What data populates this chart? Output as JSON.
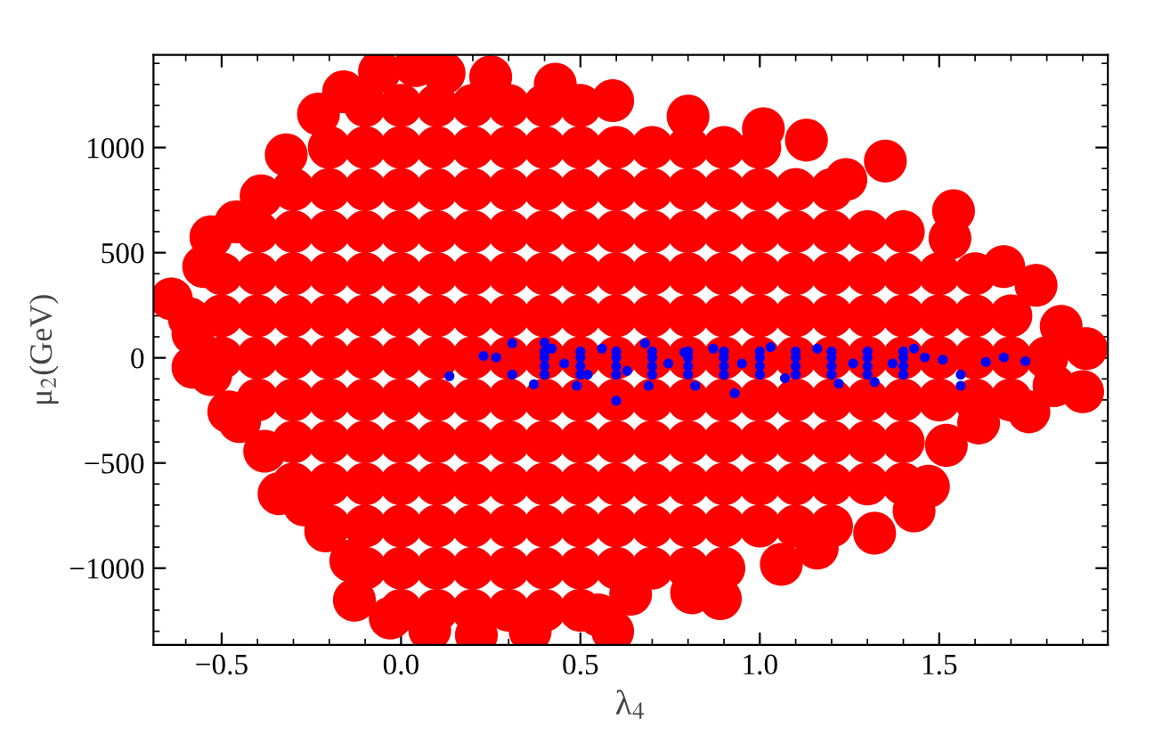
{
  "chart_data": {
    "type": "scatter",
    "xlabel": "λ$_{4}$",
    "ylabel": "μ$_{2}$(GeV)",
    "xlim": [
      -0.69,
      1.97
    ],
    "ylim": [
      -1365,
      1440
    ],
    "xticks": [
      {
        "value": -0.5,
        "label": "−0.5"
      },
      {
        "value": 0,
        "label": "0.0"
      },
      {
        "value": 0.5,
        "label": "0.5"
      },
      {
        "value": 1,
        "label": "1.0"
      },
      {
        "value": 1.5,
        "label": "1.5"
      }
    ],
    "yticks": [
      {
        "value": -1000,
        "label": "−1000"
      },
      {
        "value": -500,
        "label": "−500"
      },
      0,
      500,
      1000
    ],
    "grid": false,
    "marker": "circle",
    "series": [
      {
        "color": "#ff0000",
        "x": [
          -0.64,
          -0.58,
          -0.58,
          -0.53,
          -0.48,
          -0.45,
          -0.38,
          -0.34,
          -0.27,
          -0.21,
          -0.14,
          -0.13,
          -0.03,
          0.08,
          0.21,
          0.36,
          0.59,
          0.55,
          0.64,
          0.81,
          0.89,
          1.06,
          1.16,
          1.32,
          1.43,
          1.47,
          1.52,
          1.61,
          1.75,
          1.82,
          1.9,
          1.91,
          1.84,
          1.77,
          1.68,
          1.54,
          1.53,
          1.35,
          1.24,
          1.13,
          1.01,
          0.8,
          0.59,
          0.43,
          0.25,
          0.12,
          0.04,
          -0.06,
          -0.16,
          -0.23,
          -0.32,
          -0.39,
          -0.46,
          -0.53,
          -0.55,
          -0.59,
          -0.1,
          0.0,
          0.1,
          0.2,
          0.3,
          0.4,
          0.5,
          -0.2,
          -0.1,
          0.0,
          0.1,
          0.2,
          0.3,
          0.4,
          0.5,
          0.6,
          0.7,
          0.8,
          0.9,
          1.0,
          -0.3,
          -0.2,
          -0.1,
          0.0,
          0.1,
          0.2,
          0.3,
          0.4,
          0.5,
          0.6,
          0.7,
          0.8,
          0.9,
          1.0,
          1.1,
          1.2,
          -0.4,
          -0.3,
          -0.2,
          -0.1,
          0.0,
          0.1,
          0.2,
          0.3,
          0.4,
          0.5,
          0.6,
          0.7,
          0.8,
          0.9,
          1.0,
          1.1,
          1.2,
          1.3,
          1.4,
          -0.5,
          -0.4,
          -0.3,
          -0.2,
          -0.1,
          0.0,
          0.1,
          0.2,
          0.3,
          0.4,
          0.5,
          0.6,
          0.7,
          0.8,
          0.9,
          1.0,
          1.1,
          1.2,
          1.3,
          1.4,
          1.5,
          1.6,
          -0.5,
          -0.4,
          -0.3,
          -0.2,
          -0.1,
          0.0,
          0.1,
          0.2,
          0.3,
          0.4,
          0.5,
          0.6,
          0.7,
          0.8,
          0.9,
          1.0,
          1.1,
          1.2,
          1.3,
          1.4,
          1.5,
          1.6,
          1.7,
          -0.5,
          -0.4,
          -0.3,
          -0.2,
          -0.1,
          0.0,
          0.1,
          0.2,
          0.3,
          0.4,
          0.5,
          0.6,
          0.7,
          0.8,
          0.9,
          1.0,
          1.1,
          1.2,
          1.3,
          1.4,
          1.5,
          1.6,
          1.7,
          1.8,
          -0.4,
          -0.3,
          -0.2,
          -0.1,
          0.0,
          0.1,
          0.2,
          0.3,
          0.4,
          0.5,
          0.6,
          0.7,
          0.8,
          0.9,
          1.0,
          1.1,
          1.2,
          1.3,
          1.4,
          1.5,
          1.6,
          1.7,
          -0.3,
          -0.2,
          -0.1,
          0.0,
          0.1,
          0.2,
          0.3,
          0.4,
          0.5,
          0.6,
          0.7,
          0.8,
          0.9,
          1.0,
          1.1,
          1.2,
          1.3,
          1.4,
          -0.3,
          -0.2,
          -0.1,
          0.0,
          0.1,
          0.2,
          0.3,
          0.4,
          0.5,
          0.6,
          0.7,
          0.8,
          0.9,
          1.0,
          1.1,
          1.2,
          1.3,
          1.4,
          -0.2,
          -0.1,
          0.0,
          0.1,
          0.2,
          0.3,
          0.4,
          0.5,
          0.6,
          0.7,
          0.8,
          0.9,
          1.0,
          1.1,
          1.2,
          -0.1,
          0.0,
          0.1,
          0.2,
          0.3,
          0.4,
          0.5,
          0.6,
          0.7,
          0.8,
          0.9,
          0.0,
          0.1,
          0.2,
          0.3,
          0.4,
          0.5
        ],
        "values": [
          280,
          115,
          -45,
          -80,
          -257,
          -303,
          -444,
          -646,
          -699,
          -823,
          -965,
          -1152,
          -1237,
          -1294,
          -1319,
          -1301,
          -1301,
          -1223,
          -1124,
          -1117,
          -1145,
          -982,
          -905,
          -834,
          -728,
          -611,
          -416,
          -310,
          -257,
          -133,
          -161,
          44,
          150,
          345,
          434,
          699,
          568,
          936,
          848,
          1035,
          1089,
          1149,
          1223,
          1301,
          1336,
          1354,
          1389,
          1361,
          1265,
          1159,
          965,
          770,
          646,
          575,
          434,
          186,
          1200,
          1200,
          1200,
          1200,
          1200,
          1200,
          1200,
          1000,
          1000,
          1000,
          1000,
          1000,
          1000,
          1000,
          1000,
          1000,
          1000,
          1000,
          1000,
          1000,
          800,
          800,
          800,
          800,
          800,
          800,
          800,
          800,
          800,
          800,
          800,
          800,
          800,
          800,
          800,
          800,
          600,
          600,
          600,
          600,
          600,
          600,
          600,
          600,
          600,
          600,
          600,
          600,
          600,
          600,
          600,
          600,
          600,
          600,
          600,
          400,
          400,
          400,
          400,
          400,
          400,
          400,
          400,
          400,
          400,
          400,
          400,
          400,
          400,
          400,
          400,
          400,
          400,
          400,
          400,
          400,
          400,
          200,
          200,
          200,
          200,
          200,
          200,
          200,
          200,
          200,
          200,
          200,
          200,
          200,
          200,
          200,
          200,
          200,
          200,
          200,
          200,
          200,
          200,
          200,
          0,
          0,
          0,
          0,
          0,
          0,
          0,
          0,
          0,
          0,
          0,
          0,
          0,
          0,
          0,
          0,
          0,
          0,
          0,
          0,
          0,
          0,
          0,
          0,
          -200,
          -200,
          -200,
          -200,
          -200,
          -200,
          -200,
          -200,
          -200,
          -200,
          -200,
          -200,
          -200,
          -200,
          -200,
          -200,
          -200,
          -200,
          -200,
          -200,
          -200,
          -200,
          -400,
          -400,
          -400,
          -400,
          -400,
          -400,
          -400,
          -400,
          -400,
          -400,
          -400,
          -400,
          -400,
          -400,
          -400,
          -400,
          -400,
          -400,
          -600,
          -600,
          -600,
          -600,
          -600,
          -600,
          -600,
          -600,
          -600,
          -600,
          -600,
          -600,
          -600,
          -600,
          -600,
          -600,
          -600,
          -600,
          -800,
          -800,
          -800,
          -800,
          -800,
          -800,
          -800,
          -800,
          -800,
          -800,
          -800,
          -800,
          -800,
          -800,
          -800,
          -1000,
          -1000,
          -1000,
          -1000,
          -1000,
          -1000,
          -1000,
          -1000,
          -1000,
          -1000,
          -1000,
          -1200,
          -1200,
          -1200,
          -1200,
          -1200,
          -1200
        ]
      },
      {
        "color": "#0000ff",
        "x": [
          0.135,
          0.23,
          0.265,
          0.31,
          0.31,
          0.37,
          0.4,
          0.42,
          0.455,
          0.49,
          0.52,
          0.56,
          0.6,
          0.63,
          0.68,
          0.69,
          0.745,
          0.79,
          0.82,
          0.87,
          0.93,
          0.95,
          1.03,
          1.07,
          1.16,
          1.22,
          1.26,
          1.32,
          1.37,
          1.43,
          1.46,
          1.51,
          1.56,
          1.56,
          1.63,
          1.68,
          1.74,
          0.4,
          0.5,
          0.6,
          0.7,
          0.8,
          0.9,
          1.0,
          1.1,
          1.2,
          1.3,
          1.4,
          0.4,
          0.5,
          0.6,
          0.7,
          0.8,
          0.9,
          1.0,
          1.1,
          1.2,
          1.3,
          1.4,
          0.4,
          0.5,
          0.6,
          0.7,
          0.8,
          0.9,
          1.0,
          1.1,
          1.2,
          1.3,
          1.4,
          0.4,
          0.5,
          0.6,
          0.7,
          0.8,
          0.9,
          1.0,
          1.1,
          1.2,
          1.3,
          1.4
        ],
        "values": [
          -87,
          9,
          2,
          69,
          -80,
          -126,
          73,
          44,
          -27,
          -133,
          -80,
          44,
          -204,
          -62,
          69,
          -133,
          -27,
          26,
          -133,
          44,
          -168,
          -27,
          51,
          -97,
          44,
          -122,
          -27,
          -115,
          -27,
          44,
          2,
          -9,
          -80,
          -133,
          -20,
          2,
          -16,
          -80,
          -80,
          -80,
          -80,
          -80,
          -80,
          -80,
          -80,
          -80,
          -80,
          -80,
          -40,
          -40,
          -40,
          -40,
          -40,
          -40,
          -40,
          -40,
          -40,
          -40,
          -40,
          0,
          0,
          0,
          0,
          0,
          0,
          0,
          0,
          0,
          0,
          0,
          30,
          30,
          30,
          30,
          30,
          30,
          30,
          30,
          30,
          30,
          30
        ]
      }
    ]
  }
}
